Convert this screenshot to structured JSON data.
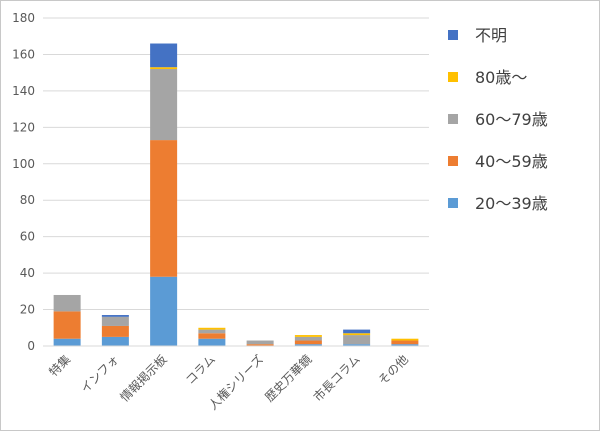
{
  "chart_data": {
    "type": "bar",
    "stacked": true,
    "title": "",
    "xlabel": "",
    "ylabel": "",
    "ylim": [
      0,
      180
    ],
    "yticks": [
      0,
      20,
      40,
      60,
      80,
      100,
      120,
      140,
      160,
      180
    ],
    "grid": true,
    "legend_position": "right",
    "categories": [
      "特集",
      "インフォ",
      "情報掲示板",
      "コラム",
      "人権シリーズ",
      "歴史万華鏡",
      "市長コラム",
      "その他"
    ],
    "series": [
      {
        "name": "20～39歳",
        "color": "#5B9BD5",
        "values": [
          4,
          5,
          38,
          4,
          0,
          1,
          1,
          1
        ]
      },
      {
        "name": "40～59歳",
        "color": "#ED7D31",
        "values": [
          15,
          6,
          75,
          3,
          1,
          2,
          0,
          2
        ]
      },
      {
        "name": "60～79歳",
        "color": "#A5A5A5",
        "values": [
          9,
          5,
          39,
          2,
          2,
          2,
          5,
          0
        ]
      },
      {
        "name": "80歳～",
        "color": "#FFC000",
        "values": [
          0,
          0,
          1,
          1,
          0,
          1,
          1,
          1
        ]
      },
      {
        "name": "不明",
        "color": "#4472C4",
        "values": [
          0,
          1,
          13,
          0,
          0,
          0,
          2,
          0
        ]
      }
    ],
    "legend_order": [
      "不明",
      "80歳～",
      "60～79歳",
      "40～59歳",
      "20～39歳"
    ]
  }
}
